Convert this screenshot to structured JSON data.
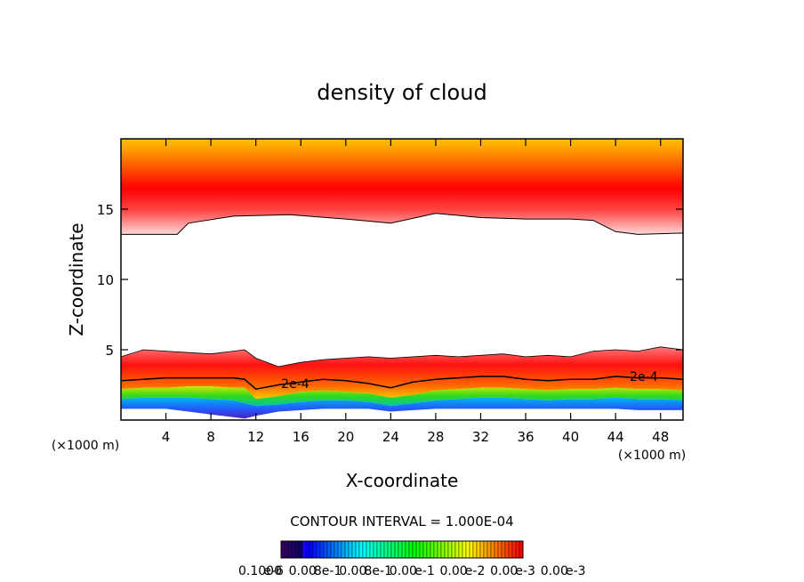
{
  "chart_data": {
    "type": "heatmap",
    "title": "density of cloud",
    "xlabel": "X-coordinate",
    "ylabel": "Z-coordinate",
    "x_unit_left": "(×1000 m)",
    "x_unit_right": "(×1000 m)",
    "xlim": [
      0,
      50
    ],
    "ylim": [
      0,
      20
    ],
    "x_ticks": [
      4,
      8,
      12,
      16,
      20,
      24,
      28,
      32,
      36,
      40,
      44,
      48
    ],
    "y_ticks": [
      5,
      10,
      15
    ],
    "contour_interval_text": "CONTOUR INTERVAL = 1.000E-04",
    "contour_labels": [
      {
        "text": "2e-4",
        "x": 15.5,
        "z": 2.6
      },
      {
        "text": "2e-4",
        "x": 46.5,
        "z": 3.1
      }
    ],
    "colorbar_labels": [
      "0.1000",
      "e-6",
      "0.00",
      "8e-1",
      "0.00",
      "8e-1",
      "0.00",
      "e-1",
      "0.00",
      "e-2",
      "0.00",
      "e-3",
      "0.00",
      "e-3"
    ],
    "upper_layer": {
      "x": [
        0,
        5,
        6,
        10,
        15,
        20,
        24,
        28,
        32,
        36,
        40,
        42,
        44,
        46,
        50
      ],
      "bottom": [
        13.2,
        13.2,
        14.0,
        14.5,
        14.6,
        14.3,
        14.0,
        14.7,
        14.4,
        14.3,
        14.3,
        14.2,
        13.4,
        13.2,
        13.3
      ],
      "top": 20
    },
    "lower_layer": {
      "x": [
        0,
        2,
        4,
        6,
        8,
        10,
        11,
        12,
        14,
        16,
        18,
        20,
        22,
        24,
        26,
        28,
        30,
        32,
        34,
        36,
        38,
        40,
        42,
        44,
        46,
        48,
        50
      ],
      "top": [
        4.5,
        5.0,
        4.9,
        4.8,
        4.7,
        4.9,
        5.0,
        4.4,
        3.8,
        4.1,
        4.3,
        4.4,
        4.5,
        4.4,
        4.5,
        4.6,
        4.5,
        4.6,
        4.7,
        4.5,
        4.6,
        4.5,
        4.9,
        5.0,
        4.9,
        5.2,
        5.0
      ],
      "contour": [
        2.8,
        2.9,
        3.0,
        3.0,
        3.0,
        3.0,
        2.9,
        2.2,
        2.5,
        2.7,
        2.9,
        2.8,
        2.6,
        2.3,
        2.7,
        2.9,
        3.0,
        3.1,
        3.1,
        2.9,
        2.8,
        2.9,
        2.9,
        3.1,
        3.0,
        3.0,
        2.9
      ],
      "green_top": [
        2.2,
        2.3,
        2.3,
        2.4,
        2.4,
        2.3,
        2.3,
        1.5,
        1.7,
        2.0,
        2.1,
        2.0,
        1.9,
        1.6,
        1.8,
        2.1,
        2.2,
        2.3,
        2.3,
        2.2,
        2.1,
        2.2,
        2.2,
        2.3,
        2.2,
        2.2,
        2.1
      ],
      "blue_top": [
        1.5,
        1.6,
        1.6,
        1.6,
        1.5,
        1.4,
        1.2,
        1.0,
        1.1,
        1.3,
        1.4,
        1.4,
        1.3,
        1.0,
        1.2,
        1.4,
        1.5,
        1.6,
        1.6,
        1.5,
        1.4,
        1.5,
        1.5,
        1.6,
        1.5,
        1.5,
        1.4
      ],
      "bottom": [
        0.8,
        0.8,
        0.8,
        0.6,
        0.4,
        0.2,
        0.1,
        0.3,
        0.6,
        0.7,
        0.8,
        0.8,
        0.8,
        0.6,
        0.7,
        0.8,
        0.8,
        0.8,
        0.8,
        0.8,
        0.8,
        0.8,
        0.8,
        0.8,
        0.7,
        0.7,
        0.7
      ]
    },
    "colors": {
      "red": "#ff0000",
      "orange": "#ff9900",
      "yellow": "#ffd000",
      "green": "#00d000",
      "blue": "#2060ff",
      "violet": "#6020c0"
    }
  }
}
